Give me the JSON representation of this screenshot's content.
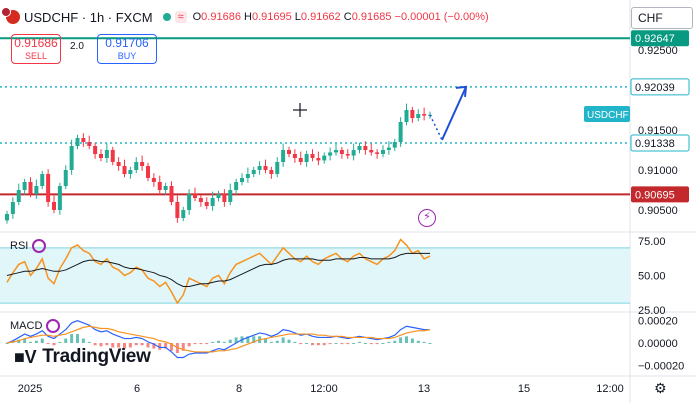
{
  "header": {
    "symbol": "USDCHF · 1h · FXCM",
    "wave": "≈",
    "open_label": "O",
    "open": "0.91686",
    "high_label": "H",
    "high": "0.91695",
    "low_label": "L",
    "low": "0.91662",
    "close_label": "C",
    "close": "0.91685",
    "change": "−0.00001 (−0.00%)"
  },
  "trade": {
    "sell_price": "0.91686",
    "sell_label": "SELL",
    "spread": "2.0",
    "buy_price": "0.91706",
    "buy_label": "BUY"
  },
  "currency": "CHF",
  "price_tags": {
    "top": "0.92647",
    "resistance": "0.92039",
    "symbol_label": "USDCHF",
    "support": "0.91338",
    "red_line": "0.90695"
  },
  "indicators": {
    "rsi_label": "RSI",
    "macd_label": "MACD"
  },
  "branding": "TradingView",
  "colors": {
    "up": "#22ab94",
    "down": "#f23645",
    "red_line": "#c2282c",
    "level": "#22b5c9",
    "arrow": "#1e4fd8",
    "rsi": "#f7931e",
    "macd_line": "#2962ff",
    "signal_line": "#f7931e"
  },
  "chart_data": [
    {
      "type": "candlestick",
      "title": "USDCHF",
      "ylim": [
        0.9025,
        0.927
      ],
      "y_ticks": [
        0.905,
        0.91,
        0.915,
        0.925
      ],
      "y_tick_labels": [
        "0.90500",
        "0.91000",
        "0.91500",
        "0.92500"
      ],
      "x_tick_labels": [
        "2025",
        "6",
        "8",
        "12:00",
        "13",
        "15",
        "12:00"
      ],
      "levels": [
        {
          "name": "top",
          "value": 0.92647,
          "style": "solid",
          "color": "#089981"
        },
        {
          "name": "resistance",
          "value": 0.92039,
          "style": "dotted",
          "color": "#22b5c9"
        },
        {
          "name": "support",
          "value": 0.91338,
          "style": "dotted",
          "color": "#22b5c9"
        },
        {
          "name": "red_line",
          "value": 0.90695,
          "style": "solid",
          "color": "#c2282c"
        }
      ],
      "close": [
        0.9045,
        0.906,
        0.9075,
        0.9085,
        0.907,
        0.908,
        0.9095,
        0.906,
        0.905,
        0.908,
        0.91,
        0.913,
        0.914,
        0.9135,
        0.913,
        0.912,
        0.9115,
        0.9125,
        0.911,
        0.9105,
        0.9095,
        0.91,
        0.911,
        0.9105,
        0.909,
        0.9085,
        0.9075,
        0.908,
        0.906,
        0.904,
        0.905,
        0.907,
        0.9065,
        0.906,
        0.9055,
        0.9065,
        0.907,
        0.906,
        0.9075,
        0.9085,
        0.909,
        0.9095,
        0.91,
        0.9105,
        0.91,
        0.9095,
        0.911,
        0.9125,
        0.912,
        0.9115,
        0.911,
        0.912,
        0.9115,
        0.9112,
        0.9118,
        0.9122,
        0.9125,
        0.912,
        0.9118,
        0.9125,
        0.913,
        0.9125,
        0.9122,
        0.912,
        0.9125,
        0.9128,
        0.9135,
        0.916,
        0.9175,
        0.9165,
        0.917,
        0.9168,
        0.9169
      ]
    },
    {
      "type": "line",
      "title": "RSI",
      "ylim": [
        25,
        80
      ],
      "y_ticks": [
        75,
        50,
        25
      ],
      "y_tick_labels": [
        "75.00",
        "50.00",
        "25.00"
      ],
      "band": [
        30,
        70
      ],
      "series": [
        {
          "values": [
            45,
            52,
            58,
            60,
            50,
            55,
            62,
            48,
            44,
            55,
            62,
            70,
            72,
            68,
            66,
            60,
            58,
            62,
            56,
            54,
            50,
            52,
            56,
            54,
            48,
            46,
            42,
            45,
            38,
            30,
            36,
            48,
            46,
            44,
            42,
            48,
            50,
            44,
            52,
            58,
            60,
            62,
            64,
            66,
            62,
            58,
            64,
            70,
            66,
            62,
            60,
            64,
            60,
            58,
            62,
            64,
            66,
            62,
            60,
            64,
            66,
            62,
            60,
            58,
            62,
            64,
            68,
            76,
            72,
            66,
            68,
            62,
            64
          ]
        },
        {
          "values": [
            50,
            51,
            52,
            53,
            53,
            54,
            55,
            54,
            53,
            53,
            54,
            56,
            58,
            60,
            61,
            61,
            60,
            60,
            59,
            58,
            56,
            55,
            55,
            54,
            53,
            52,
            50,
            49,
            47,
            44,
            42,
            42,
            43,
            44,
            44,
            45,
            46,
            46,
            47,
            49,
            51,
            53,
            55,
            57,
            58,
            58,
            59,
            61,
            62,
            62,
            62,
            62,
            62,
            61,
            61,
            61,
            62,
            62,
            62,
            62,
            63,
            63,
            62,
            62,
            62,
            62,
            63,
            65,
            66,
            66,
            66,
            66,
            66
          ]
        }
      ]
    },
    {
      "type": "line",
      "title": "MACD",
      "ylim": [
        -0.00026,
        0.00026
      ],
      "y_ticks": [
        0.0002,
        0.0,
        -0.0002
      ],
      "y_tick_labels": [
        "0.00020",
        "0.00000",
        "−0.00020"
      ],
      "series": [
        {
          "values": [
            0,
            2e-05,
            5e-05,
            8e-05,
            6e-05,
            8e-05,
            0.00011,
            6e-05,
            4e-05,
            8e-05,
            0.00012,
            0.00018,
            0.0002,
            0.00018,
            0.00016,
            0.00012,
            0.0001,
            0.00011,
            8e-05,
            6e-05,
            4e-05,
            4e-05,
            5e-05,
            4e-05,
            1e-05,
            -1e-05,
            -4e-05,
            -4e-05,
            -8e-05,
            -0.00013,
            -0.00013,
            -0.0001,
            -9e-05,
            -9e-05,
            -9e-05,
            -7e-05,
            -5e-05,
            -6e-05,
            -3e-05,
            0,
            3e-05,
            5e-05,
            7e-05,
            9e-05,
            8e-05,
            6e-05,
            8e-05,
            0.00012,
            0.00011,
            9e-05,
            7e-05,
            8e-05,
            6e-05,
            5e-05,
            5e-05,
            5e-05,
            6e-05,
            5e-05,
            4e-05,
            5e-05,
            6e-05,
            5e-05,
            4e-05,
            3e-05,
            4e-05,
            5e-05,
            7e-05,
            0.00012,
            0.00015,
            0.00014,
            0.00013,
            0.00012,
            0.00012
          ]
        },
        {
          "values": [
            0,
            1e-05,
            2e-05,
            4e-05,
            5e-05,
            6e-05,
            7e-05,
            7e-05,
            6e-05,
            7e-05,
            8e-05,
            0.0001,
            0.00012,
            0.00014,
            0.00015,
            0.00014,
            0.00013,
            0.00013,
            0.00012,
            0.0001,
            9e-05,
            8e-05,
            7e-05,
            6e-05,
            5e-05,
            4e-05,
            2e-05,
            1e-05,
            -1e-05,
            -4e-05,
            -6e-05,
            -7e-05,
            -8e-05,
            -8e-05,
            -8e-05,
            -8e-05,
            -7e-05,
            -7e-05,
            -6e-05,
            -5e-05,
            -3e-05,
            -1e-05,
            1e-05,
            3e-05,
            4e-05,
            5e-05,
            6e-05,
            7e-05,
            8e-05,
            8e-05,
            8e-05,
            8e-05,
            8e-05,
            7e-05,
            7e-05,
            6e-05,
            6e-05,
            6e-05,
            5e-05,
            5e-05,
            5e-05,
            5e-05,
            5e-05,
            4e-05,
            4e-05,
            4e-05,
            5e-05,
            7e-05,
            9e-05,
            0.0001,
            0.00011,
            0.00011,
            0.00012
          ]
        }
      ]
    }
  ]
}
